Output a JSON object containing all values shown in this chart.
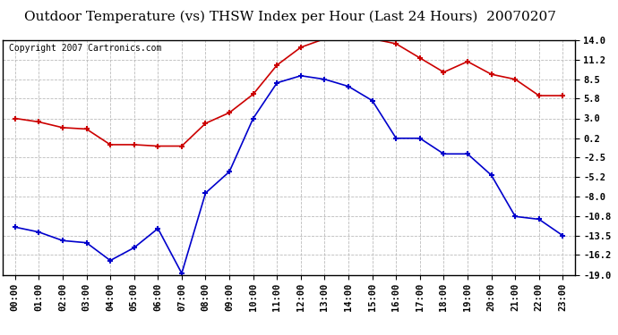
{
  "title": "Outdoor Temperature (vs) THSW Index per Hour (Last 24 Hours)  20070207",
  "copyright": "Copyright 2007 Cartronics.com",
  "hours": [
    "00:00",
    "01:00",
    "02:00",
    "03:00",
    "04:00",
    "05:00",
    "06:00",
    "07:00",
    "08:00",
    "09:00",
    "10:00",
    "11:00",
    "12:00",
    "13:00",
    "14:00",
    "15:00",
    "16:00",
    "17:00",
    "18:00",
    "19:00",
    "20:00",
    "21:00",
    "22:00",
    "23:00"
  ],
  "red_data": [
    3.0,
    2.5,
    1.7,
    1.5,
    -0.7,
    -0.7,
    -0.9,
    -0.9,
    2.3,
    3.8,
    6.4,
    10.5,
    13.0,
    14.2,
    14.2,
    14.2,
    13.5,
    11.5,
    9.5,
    11.0,
    9.2,
    8.5,
    6.2,
    6.2
  ],
  "blue_data": [
    -12.3,
    -13.0,
    -14.2,
    -14.5,
    -17.0,
    -15.2,
    -12.5,
    -18.8,
    -7.5,
    -4.5,
    3.0,
    8.0,
    9.0,
    8.5,
    7.5,
    5.5,
    0.2,
    0.2,
    -2.0,
    -2.0,
    -5.0,
    -10.8,
    -11.2,
    -13.5
  ],
  "y_ticks": [
    14.0,
    11.2,
    8.5,
    5.8,
    3.0,
    0.2,
    -2.5,
    -5.2,
    -8.0,
    -10.8,
    -13.5,
    -16.2,
    -19.0
  ],
  "y_min": -19.0,
  "y_max": 14.0,
  "red_color": "#cc0000",
  "blue_color": "#0000cc",
  "grid_color": "#bbbbbb",
  "bg_color": "#ffffff",
  "title_fontsize": 11,
  "copyright_fontsize": 7,
  "tick_fontsize": 7.5
}
